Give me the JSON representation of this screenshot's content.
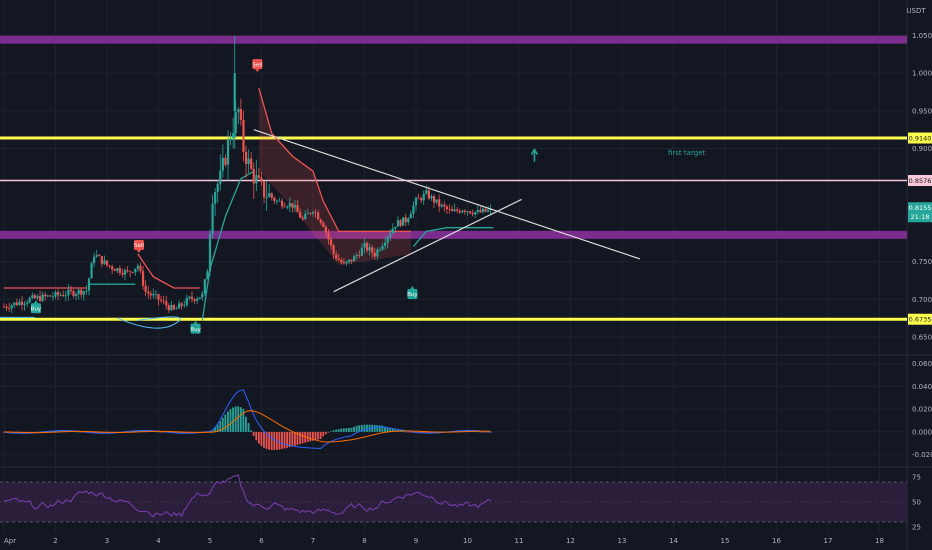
{
  "instrument": {
    "currency": "USDT",
    "last_price": "0.8155",
    "countdown": "21:18"
  },
  "colors": {
    "background": "#131722",
    "up": "#26a69a",
    "down": "#ef5350",
    "yellow_level": "#ffff4d",
    "purple_zone": "#7b2d8e",
    "pink_level": "#f8c8d8",
    "trendline": "#d9d9d9",
    "macd": "#2962ff",
    "signal": "#ff6d00",
    "rsi": "#7e3fb5",
    "rsi_band": "#2a1e3a",
    "target_arrow": "#26a69a"
  },
  "annotations": {
    "first_target": "first target"
  },
  "chart_data": [
    {
      "type": "candlestick",
      "name": "price",
      "x_ticks": [
        "Apr",
        "2",
        "3",
        "4",
        "5",
        "6",
        "7",
        "8",
        "9",
        "10",
        "11",
        "12",
        "13",
        "14",
        "15",
        "16",
        "17",
        "18"
      ],
      "y_ticks": [
        "1.0500",
        "1.0000",
        "0.9500",
        "0.9000",
        "0.7500",
        "0.7000",
        "0.6500"
      ],
      "ylim": [
        0.63,
        1.06
      ],
      "levels": [
        {
          "kind": "zone",
          "color": "purple",
          "price": 1.0445
        },
        {
          "kind": "line",
          "color": "yellow",
          "price": 0.914,
          "label": "0.9140"
        },
        {
          "kind": "line",
          "color": "pink",
          "price": 0.8576,
          "label": "0.8576"
        },
        {
          "kind": "zone",
          "color": "purple",
          "price": 0.7855
        },
        {
          "kind": "line",
          "color": "yellow",
          "price": 0.6735,
          "label": "0.6735"
        }
      ],
      "signals": [
        {
          "label": "Buy",
          "day": 1.62,
          "price": 0.688
        },
        {
          "label": "Sell",
          "day": 3.62,
          "price": 0.772
        },
        {
          "label": "Buy",
          "day": 4.72,
          "price": 0.661
        },
        {
          "label": "Sell",
          "day": 5.92,
          "price": 1.012
        },
        {
          "label": "Buy",
          "day": 8.93,
          "price": 0.707
        }
      ],
      "trendlines": [
        {
          "from": [
            5.85,
            0.925
          ],
          "to": [
            13.35,
            0.7535
          ]
        },
        {
          "from": [
            7.4,
            0.71
          ],
          "to": [
            11.05,
            0.8325
          ]
        }
      ],
      "target_arrow": {
        "day": 11.3,
        "price": 0.892
      }
    },
    {
      "type": "histogram",
      "name": "MACD",
      "y_ticks": [
        "0.0600",
        "0.0400",
        "0.0200",
        "0.0000",
        "-0.0200"
      ],
      "ylim": [
        -0.03,
        0.065
      ]
    },
    {
      "type": "line",
      "name": "RSI",
      "y_ticks": [
        "75",
        "50",
        "25"
      ],
      "ylim": [
        22,
        82
      ],
      "bands": [
        70,
        30
      ]
    }
  ]
}
